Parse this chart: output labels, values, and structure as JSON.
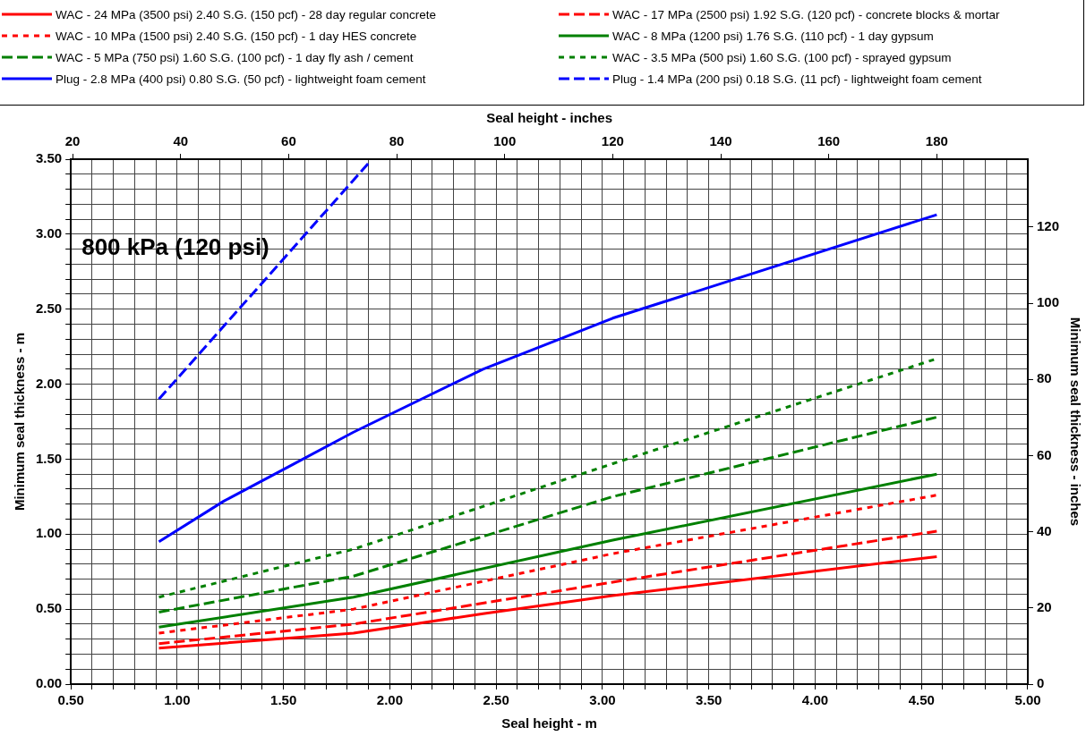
{
  "chart_data": {
    "type": "line",
    "xlabel": "Seal height - m",
    "x2label": "Seal height - inches",
    "ylabel": "Minimum seal thickness - m",
    "y2label": "Minimum seal thickness - inches",
    "annotations": [
      "800 kPa (120 psi)"
    ],
    "legend": "top",
    "grid": true,
    "marker": "none",
    "xlim": [
      0.5,
      5.0
    ],
    "xticks": [
      {
        "value": 0.5,
        "label": "0.50"
      },
      {
        "value": 0.6,
        "label": null
      },
      {
        "value": 0.7,
        "label": null
      },
      {
        "value": 0.8,
        "label": null
      },
      {
        "value": 0.9,
        "label": null
      },
      {
        "value": 1.0,
        "label": "1.00"
      },
      {
        "value": 1.1,
        "label": null
      },
      {
        "value": 1.2,
        "label": null
      },
      {
        "value": 1.3,
        "label": null
      },
      {
        "value": 1.4,
        "label": null
      },
      {
        "value": 1.5,
        "label": "1.50"
      },
      {
        "value": 1.6,
        "label": null
      },
      {
        "value": 1.7,
        "label": null
      },
      {
        "value": 1.8,
        "label": null
      },
      {
        "value": 1.9,
        "label": null
      },
      {
        "value": 2.0,
        "label": "2.00"
      },
      {
        "value": 2.1,
        "label": null
      },
      {
        "value": 2.2,
        "label": null
      },
      {
        "value": 2.3,
        "label": null
      },
      {
        "value": 2.4,
        "label": null
      },
      {
        "value": 2.5,
        "label": "2.50"
      },
      {
        "value": 2.6,
        "label": null
      },
      {
        "value": 2.7,
        "label": null
      },
      {
        "value": 2.8,
        "label": null
      },
      {
        "value": 2.9,
        "label": null
      },
      {
        "value": 3.0,
        "label": "3.00"
      },
      {
        "value": 3.1,
        "label": null
      },
      {
        "value": 3.2,
        "label": null
      },
      {
        "value": 3.3,
        "label": null
      },
      {
        "value": 3.4,
        "label": null
      },
      {
        "value": 3.5,
        "label": "3.50"
      },
      {
        "value": 3.6,
        "label": null
      },
      {
        "value": 3.7,
        "label": null
      },
      {
        "value": 3.8,
        "label": null
      },
      {
        "value": 3.9,
        "label": null
      },
      {
        "value": 4.0,
        "label": "4.00"
      },
      {
        "value": 4.1,
        "label": null
      },
      {
        "value": 4.2,
        "label": null
      },
      {
        "value": 4.3,
        "label": null
      },
      {
        "value": 4.4,
        "label": null
      },
      {
        "value": 4.5,
        "label": "4.50"
      },
      {
        "value": 4.6,
        "label": null
      },
      {
        "value": 4.7,
        "label": null
      },
      {
        "value": 4.8,
        "label": null
      },
      {
        "value": 4.9,
        "label": null
      },
      {
        "value": 5.0,
        "label": "5.00"
      }
    ],
    "ylim": [
      0,
      3.5
    ],
    "yticks": [
      {
        "value": 0,
        "label": "0.00"
      },
      {
        "value": 0.1,
        "label": null
      },
      {
        "value": 0.2,
        "label": null
      },
      {
        "value": 0.3,
        "label": null
      },
      {
        "value": 0.4,
        "label": null
      },
      {
        "value": 0.5,
        "label": "0.50"
      },
      {
        "value": 0.6,
        "label": null
      },
      {
        "value": 0.7,
        "label": null
      },
      {
        "value": 0.8,
        "label": null
      },
      {
        "value": 0.9,
        "label": null
      },
      {
        "value": 1.0,
        "label": "1.00"
      },
      {
        "value": 1.1,
        "label": null
      },
      {
        "value": 1.2,
        "label": null
      },
      {
        "value": 1.3,
        "label": null
      },
      {
        "value": 1.4,
        "label": null
      },
      {
        "value": 1.5,
        "label": "1.50"
      },
      {
        "value": 1.6,
        "label": null
      },
      {
        "value": 1.7,
        "label": null
      },
      {
        "value": 1.8,
        "label": null
      },
      {
        "value": 1.9,
        "label": null
      },
      {
        "value": 2.0,
        "label": "2.00"
      },
      {
        "value": 2.1,
        "label": null
      },
      {
        "value": 2.2,
        "label": null
      },
      {
        "value": 2.3,
        "label": null
      },
      {
        "value": 2.4,
        "label": null
      },
      {
        "value": 2.5,
        "label": "2.50"
      },
      {
        "value": 2.6,
        "label": null
      },
      {
        "value": 2.7,
        "label": null
      },
      {
        "value": 2.8,
        "label": null
      },
      {
        "value": 2.9,
        "label": null
      },
      {
        "value": 3.0,
        "label": "3.00"
      },
      {
        "value": 3.1,
        "label": null
      },
      {
        "value": 3.2,
        "label": null
      },
      {
        "value": 3.3,
        "label": null
      },
      {
        "value": 3.4,
        "label": null
      },
      {
        "value": 3.5,
        "label": "3.50"
      }
    ],
    "x2lim": [
      19.685,
      196.85
    ],
    "x2ticks": [
      20,
      40,
      60,
      80,
      100,
      120,
      140,
      160,
      180
    ],
    "y2lim": [
      0,
      137.8
    ],
    "y2ticks": [
      0,
      20,
      40,
      60,
      80,
      100,
      120
    ],
    "series": [
      {
        "name": "WAC - 24 MPa (3500 psi) 2.40 S.G. (150 pcf) - 28 day regular concrete",
        "color": "#ff0000",
        "line_style": "solid",
        "x": [
          0.914,
          1.829,
          2.438,
          3.048,
          4.572
        ],
        "values": [
          0.24,
          0.34,
          0.47,
          0.59,
          0.85
        ]
      },
      {
        "name": "WAC - 17 MPa (2500 psi) 1.92 S.G. (120 pcf) - concrete blocks & mortar",
        "color": "#ff0000",
        "line_style": "dashed",
        "x": [
          0.914,
          1.829,
          3.048,
          4.572
        ],
        "values": [
          0.27,
          0.4,
          0.68,
          1.02
        ]
      },
      {
        "name": "WAC - 10 MPa (1500 psi) 2.40 S.G. (150 pcf) - 1 day HES concrete",
        "color": "#ff0000",
        "line_style": "dotted",
        "x": [
          0.914,
          1.829,
          3.048,
          4.572
        ],
        "values": [
          0.34,
          0.5,
          0.87,
          1.26
        ]
      },
      {
        "name": "WAC - 8 MPa (1200 psi) 1.76 S.G. (110 pcf) - 1 day gypsum",
        "color": "#008000",
        "line_style": "solid",
        "x": [
          0.914,
          1.829,
          3.048,
          4.572
        ],
        "values": [
          0.38,
          0.58,
          0.96,
          1.4
        ]
      },
      {
        "name": "WAC - 5 MPa (750 psi) 1.60 S.G. (100 pcf) - 1 day fly ash / cement",
        "color": "#008000",
        "line_style": "dashed",
        "x": [
          0.914,
          1.829,
          3.048,
          4.572
        ],
        "values": [
          0.48,
          0.72,
          1.25,
          1.78
        ]
      },
      {
        "name": "WAC - 3.5 MPa (500 psi) 1.60 S.G. (100 pcf) - sprayed gypsum",
        "color": "#008000",
        "line_style": "dotted",
        "x": [
          0.914,
          1.829,
          3.048,
          4.572
        ],
        "values": [
          0.58,
          0.9,
          1.47,
          2.17
        ]
      },
      {
        "name": "Plug - 2.8 MPa (400 psi) 0.80 S.G. (50 pcf) - lightweight foam cement",
        "color": "#0000ff",
        "line_style": "solid",
        "x": [
          0.914,
          1.219,
          1.524,
          1.829,
          2.438,
          3.048,
          4.572
        ],
        "values": [
          0.95,
          1.22,
          1.45,
          1.68,
          2.1,
          2.44,
          3.13
        ]
      },
      {
        "name": "Plug - 1.4 MPa (200 psi) 0.18 S.G. (11 pcf) - lightweight foam cement",
        "color": "#0000ff",
        "line_style": "dashed",
        "x": [
          0.914,
          1.91
        ],
        "values": [
          1.9,
          3.49
        ]
      }
    ]
  }
}
